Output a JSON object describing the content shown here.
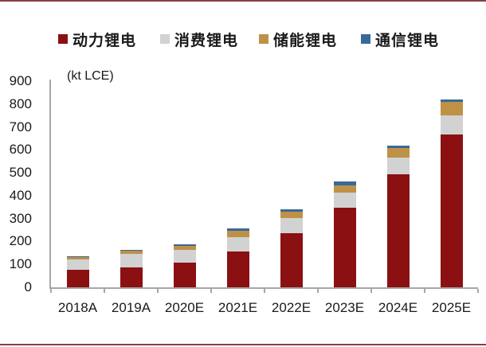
{
  "page": {
    "background": "#ffffff",
    "top_border_color": "#8a4040",
    "bottom_border_color": "#8a4040",
    "axis_color": "#a6a6a6",
    "text_color": "#1a1a1a"
  },
  "legend": {
    "items": [
      {
        "label": "动力锂电",
        "color": "#8a1012"
      },
      {
        "label": "消费锂电",
        "color": "#d2d2d2"
      },
      {
        "label": "储能锂电",
        "color": "#bf9146"
      },
      {
        "label": "通信锂电",
        "color": "#39689a"
      }
    ]
  },
  "chart_data": {
    "type": "bar",
    "stacked": true,
    "title": "",
    "unit_label": "(kt LCE)",
    "xlabel": "",
    "ylabel": "kt LCE",
    "categories": [
      "2018A",
      "2019A",
      "2020E",
      "2021E",
      "2022E",
      "2023E",
      "2024E",
      "2025E"
    ],
    "series": [
      {
        "name": "动力锂电",
        "color": "#8a1012",
        "values": [
          75,
          88,
          108,
          158,
          235,
          347,
          492,
          668
        ]
      },
      {
        "name": "消费锂电",
        "color": "#d2d2d2",
        "values": [
          48,
          58,
          57,
          62,
          66,
          66,
          76,
          84
        ]
      },
      {
        "name": "储能锂电",
        "color": "#bf9146",
        "values": [
          9,
          13,
          15,
          27,
          29,
          33,
          39,
          58
        ]
      },
      {
        "name": "通信锂电",
        "color": "#39689a",
        "values": [
          2,
          2,
          8,
          10,
          12,
          15,
          10,
          9
        ]
      }
    ],
    "totals": [
      134,
      161,
      188,
      257,
      342,
      461,
      617,
      819
    ],
    "ylim": [
      0,
      900
    ],
    "yticks": [
      0,
      100,
      200,
      300,
      400,
      500,
      600,
      700,
      800,
      900
    ],
    "grid": false,
    "legend_position": "top"
  }
}
